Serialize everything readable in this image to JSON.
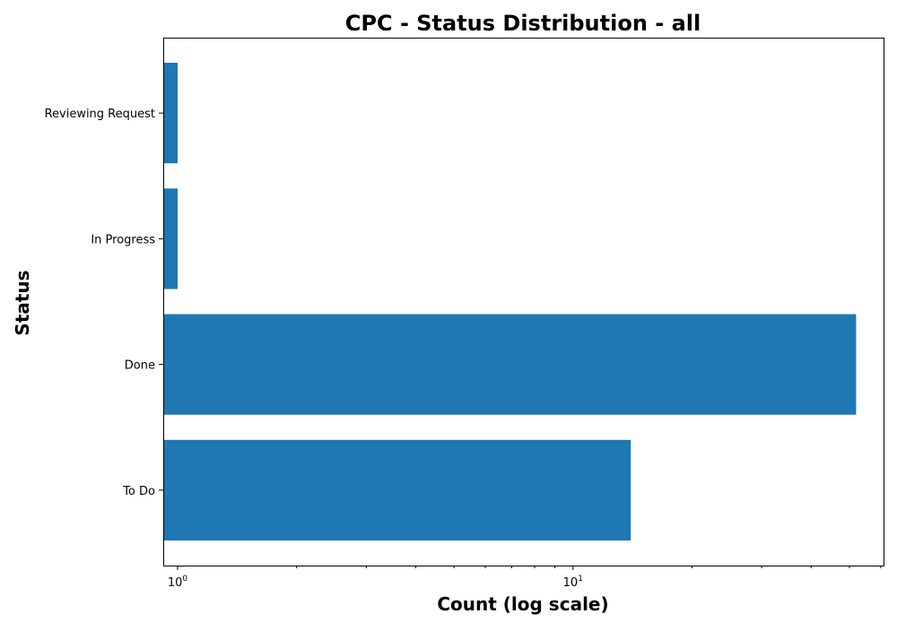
{
  "chart_data": {
    "type": "bar",
    "orientation": "horizontal",
    "title": "CPC - Status Distribution - all",
    "xlabel": "Count (log scale)",
    "ylabel": "Status",
    "x_scale": "log",
    "xlim": [
      0.92,
      61
    ],
    "x_ticks": [
      {
        "value": 1,
        "base": "10",
        "exp": "0"
      },
      {
        "value": 10,
        "base": "10",
        "exp": "1"
      }
    ],
    "categories": [
      "To Do",
      "Done",
      "In Progress",
      "Reviewing Request"
    ],
    "values": [
      14,
      52,
      1,
      1
    ],
    "bar_color": "#1f77b4",
    "grid": false,
    "legend": "none"
  }
}
